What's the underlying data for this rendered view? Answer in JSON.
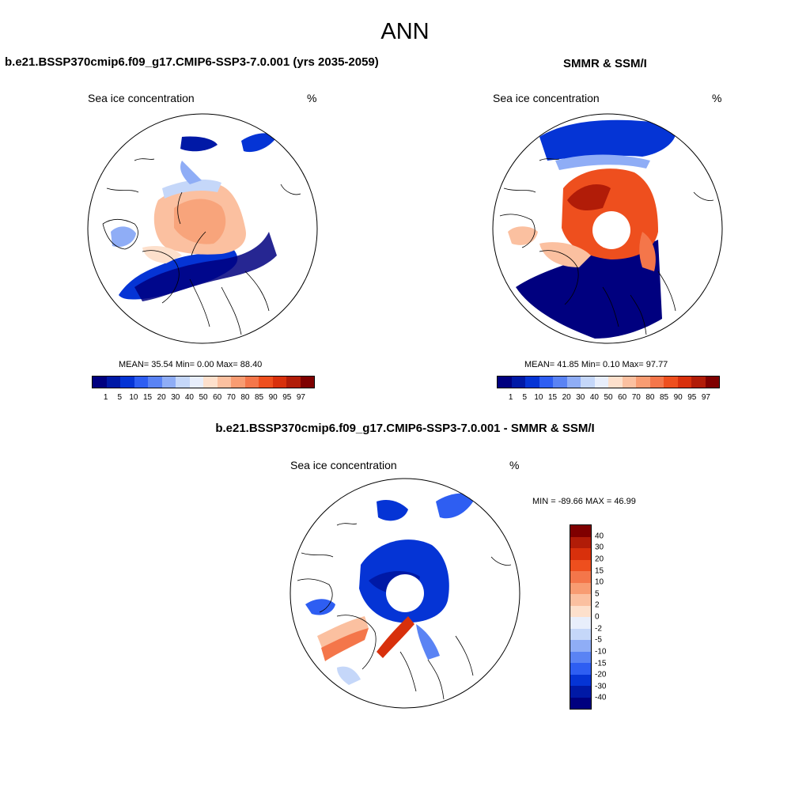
{
  "figure": {
    "season": "ANN",
    "left_title": "b.e21.BSSP370cmip6.f09_g17.CMIP6-SSP3-7.0.001 (yrs 2035-2059)",
    "right_title": "SMMR & SSM/I",
    "diff_title": "b.e21.BSSP370cmip6.f09_g17.CMIP6-SSP3-7.0.001 - SMMR & SSM/I"
  },
  "panels": {
    "model": {
      "variable": "Sea ice concentration",
      "units": "%",
      "stats": "MEAN=  35.54  Min=   0.00  Max=  88.40"
    },
    "obs": {
      "variable": "Sea ice concentration",
      "units": "%",
      "stats": "MEAN=  41.85  Min=   0.10  Max=  97.77"
    },
    "diff": {
      "variable": "Sea ice concentration",
      "units": "%",
      "stats": "MIN = -89.66 MAX =  46.99"
    }
  },
  "colorbars": {
    "abs": {
      "levels": [
        "1",
        "5",
        "10",
        "15",
        "20",
        "30",
        "40",
        "50",
        "60",
        "70",
        "80",
        "85",
        "90",
        "95",
        "97"
      ],
      "colors": [
        "#00007f",
        "#0019a6",
        "#0534d5",
        "#2e5ef2",
        "#5a83f4",
        "#8fadf6",
        "#c5d7f9",
        "#e8eefb",
        "#fde0cc",
        "#fbc0a0",
        "#f89c72",
        "#f4764a",
        "#ee4f1e",
        "#d8300c",
        "#b11c08",
        "#7f0000"
      ]
    },
    "diff": {
      "levels": [
        "40",
        "30",
        "20",
        "15",
        "10",
        "5",
        "2",
        "0",
        "-2",
        "-5",
        "-10",
        "-15",
        "-20",
        "-30",
        "-40"
      ],
      "colors": [
        "#7f0000",
        "#b11c08",
        "#d8300c",
        "#ee4f1e",
        "#f4764a",
        "#f89c72",
        "#fbc0a0",
        "#fde0cc",
        "#e8eefb",
        "#c5d7f9",
        "#8fadf6",
        "#5a83f4",
        "#2e5ef2",
        "#0534d5",
        "#0019a6",
        "#00007f"
      ]
    }
  }
}
